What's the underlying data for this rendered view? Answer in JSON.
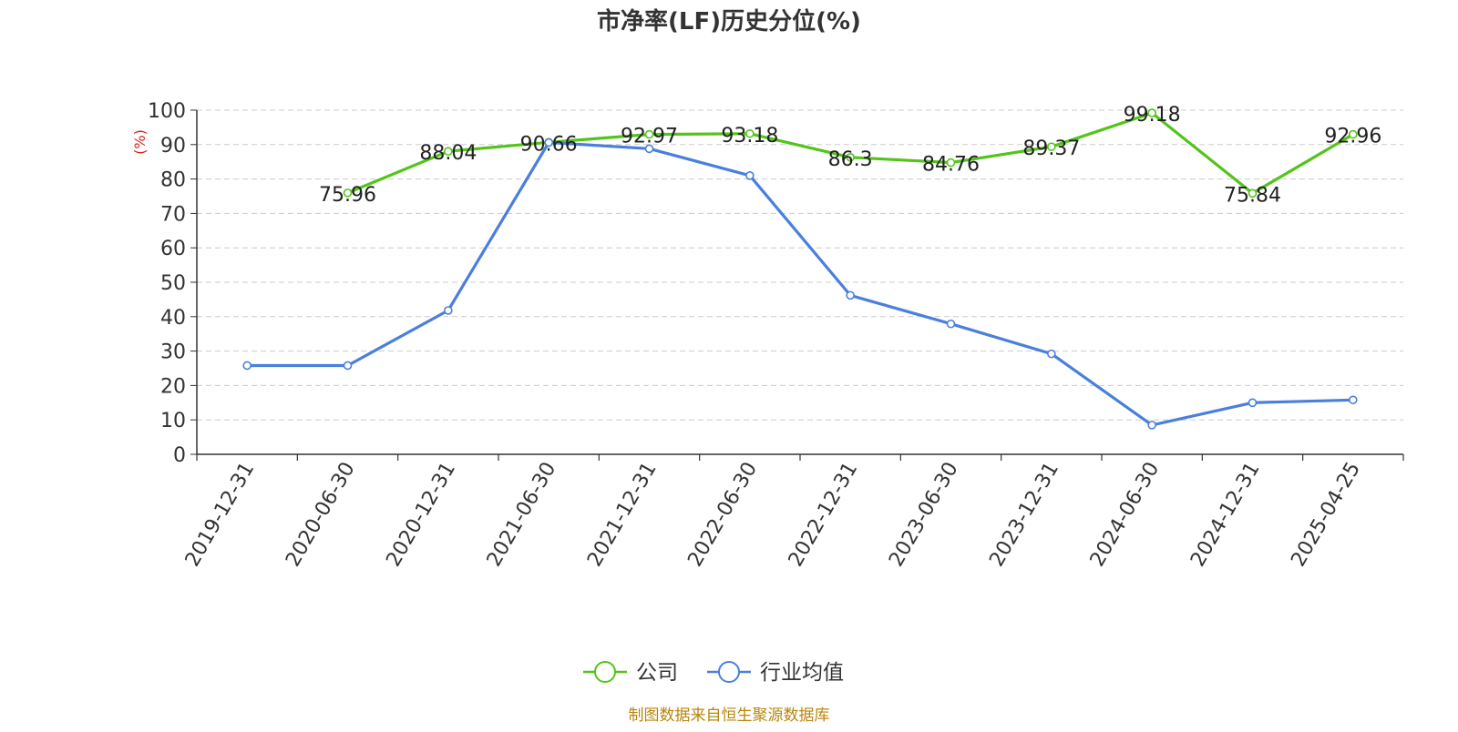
{
  "chart_data": {
    "type": "line",
    "title": "市净率(LF)历史分位(%)",
    "ylabel": "(%)",
    "ylim": [
      0,
      100
    ],
    "yticks": [
      0,
      10,
      20,
      30,
      40,
      50,
      60,
      70,
      80,
      90,
      100
    ],
    "grid": true,
    "legend_position": "bottom",
    "categories": [
      "2019-12-31",
      "2020-06-30",
      "2020-12-31",
      "2021-06-30",
      "2021-12-31",
      "2022-06-30",
      "2022-12-31",
      "2023-06-30",
      "2023-12-31",
      "2024-06-30",
      "2024-12-31",
      "2025-04-25"
    ],
    "series": [
      {
        "name": "公司",
        "color": "#52c41a",
        "show_labels": true,
        "values": [
          null,
          75.96,
          88.04,
          90.66,
          92.97,
          93.18,
          86.3,
          84.76,
          89.37,
          99.18,
          75.84,
          92.96
        ]
      },
      {
        "name": "行业均值",
        "color": "#4a7fdc",
        "show_labels": false,
        "values": [
          25.8,
          25.8,
          41.8,
          90.6,
          88.8,
          81.0,
          46.2,
          37.9,
          29.2,
          8.5,
          15.0,
          15.8
        ]
      }
    ]
  },
  "footer": {
    "source": "制图数据来自恒生聚源数据库"
  },
  "colors": {
    "ylabel": "#e02020",
    "source": "#b8860b",
    "axis": "#333333",
    "grid": "#cccccc"
  }
}
